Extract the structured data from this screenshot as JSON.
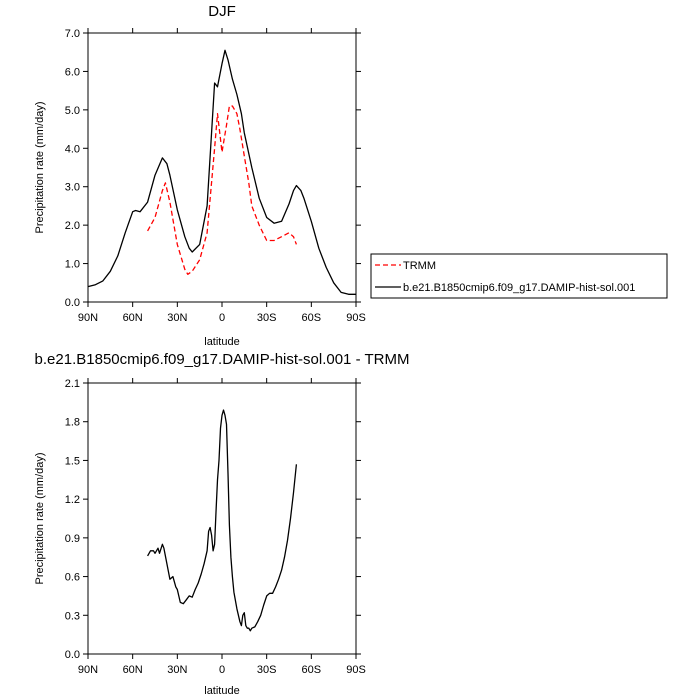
{
  "chart_data": [
    {
      "type": "line",
      "title": "DJF",
      "xlabel": "latitude",
      "ylabel": "Precipitation rate (mm/day)",
      "xlim": [
        90,
        -90
      ],
      "ylim": [
        0,
        7
      ],
      "xticks": [
        {
          "value": 90,
          "label": "90N"
        },
        {
          "value": 60,
          "label": "60N"
        },
        {
          "value": 30,
          "label": "30N"
        },
        {
          "value": 0,
          "label": "0"
        },
        {
          "value": -30,
          "label": "30S"
        },
        {
          "value": -60,
          "label": "60S"
        },
        {
          "value": -90,
          "label": "90S"
        }
      ],
      "yticks": [
        {
          "value": 0,
          "label": "0.0"
        },
        {
          "value": 1,
          "label": "1.0"
        },
        {
          "value": 2,
          "label": "2.0"
        },
        {
          "value": 3,
          "label": "3.0"
        },
        {
          "value": 4,
          "label": "4.0"
        },
        {
          "value": 5,
          "label": "5.0"
        },
        {
          "value": 6,
          "label": "6.0"
        },
        {
          "value": 7,
          "label": "7.0"
        }
      ],
      "legend_position": "right",
      "series": [
        {
          "name": "TRMM",
          "color": "#ff0000",
          "dash": true,
          "x": [
            50,
            45,
            40,
            38,
            35,
            30,
            25,
            23,
            20,
            15,
            10,
            5,
            3,
            0,
            -3,
            -5,
            -7,
            -10,
            -12,
            -15,
            -18,
            -20,
            -25,
            -30,
            -35,
            -40,
            -45,
            -48,
            -50
          ],
          "y": [
            1.85,
            2.2,
            2.9,
            3.1,
            2.6,
            1.5,
            0.85,
            0.72,
            0.8,
            1.1,
            1.8,
            4.0,
            4.9,
            3.9,
            4.6,
            5.1,
            5.1,
            4.9,
            4.5,
            3.8,
            3.1,
            2.5,
            2.0,
            1.6,
            1.6,
            1.7,
            1.8,
            1.7,
            1.5
          ]
        },
        {
          "name": "b.e21.B1850cmip6.f09_g17.DAMIP-hist-sol.001",
          "color": "#000000",
          "dash": false,
          "x": [
            90,
            85,
            80,
            75,
            70,
            65,
            60,
            58,
            55,
            50,
            45,
            40,
            37,
            35,
            30,
            25,
            22,
            20,
            15,
            10,
            5,
            3,
            0,
            -2,
            -4,
            -7,
            -10,
            -13,
            -15,
            -20,
            -25,
            -30,
            -35,
            -40,
            -45,
            -48,
            -50,
            -53,
            -55,
            -60,
            -65,
            -70,
            -75,
            -80,
            -85,
            -90
          ],
          "y": [
            0.4,
            0.45,
            0.55,
            0.8,
            1.2,
            1.8,
            2.35,
            2.38,
            2.35,
            2.6,
            3.3,
            3.75,
            3.6,
            3.3,
            2.4,
            1.7,
            1.4,
            1.3,
            1.5,
            2.5,
            5.7,
            5.6,
            6.2,
            6.55,
            6.3,
            5.8,
            5.4,
            4.9,
            4.4,
            3.5,
            2.7,
            2.2,
            2.05,
            2.1,
            2.55,
            2.9,
            3.03,
            2.9,
            2.7,
            2.1,
            1.4,
            0.9,
            0.5,
            0.25,
            0.2,
            0.2
          ]
        }
      ]
    },
    {
      "type": "line",
      "title": "b.e21.B1850cmip6.f09_g17.DAMIP-hist-sol.001 - TRMM",
      "xlabel": "latitude",
      "ylabel": "Precipitation rate (mm/day)",
      "xlim": [
        90,
        -90
      ],
      "ylim": [
        0,
        2.1
      ],
      "xticks": [
        {
          "value": 90,
          "label": "90N"
        },
        {
          "value": 60,
          "label": "60N"
        },
        {
          "value": 30,
          "label": "30N"
        },
        {
          "value": 0,
          "label": "0"
        },
        {
          "value": -30,
          "label": "30S"
        },
        {
          "value": -60,
          "label": "60S"
        },
        {
          "value": -90,
          "label": "90S"
        }
      ],
      "yticks": [
        {
          "value": 0,
          "label": "0.0"
        },
        {
          "value": 0.3,
          "label": "0.3"
        },
        {
          "value": 0.6,
          "label": "0.6"
        },
        {
          "value": 0.9,
          "label": "0.9"
        },
        {
          "value": 1.2,
          "label": "1.2"
        },
        {
          "value": 1.5,
          "label": "1.5"
        },
        {
          "value": 1.8,
          "label": "1.8"
        },
        {
          "value": 2.1,
          "label": "2.1"
        }
      ],
      "series": [
        {
          "color": "#000000",
          "dash": false,
          "x": [
            50,
            48,
            46,
            45,
            43,
            42,
            40,
            39,
            37,
            35,
            33,
            31,
            30,
            28,
            26,
            24,
            22,
            20,
            18,
            16,
            14,
            12,
            10,
            9,
            8,
            7,
            6,
            5,
            4,
            3,
            2,
            1,
            0,
            -1,
            -2,
            -3,
            -4,
            -5,
            -6,
            -7,
            -8,
            -10,
            -12,
            -13,
            -14,
            -15,
            -16,
            -17,
            -18,
            -19,
            -20,
            -22,
            -24,
            -26,
            -28,
            -30,
            -32,
            -34,
            -36,
            -38,
            -40,
            -42,
            -44,
            -46,
            -48,
            -50
          ],
          "y": [
            0.76,
            0.8,
            0.8,
            0.78,
            0.82,
            0.78,
            0.85,
            0.82,
            0.7,
            0.58,
            0.6,
            0.52,
            0.5,
            0.4,
            0.39,
            0.42,
            0.45,
            0.44,
            0.5,
            0.55,
            0.62,
            0.7,
            0.8,
            0.95,
            0.98,
            0.92,
            0.8,
            0.85,
            1.1,
            1.35,
            1.5,
            1.75,
            1.85,
            1.89,
            1.85,
            1.78,
            1.4,
            1.0,
            0.75,
            0.6,
            0.48,
            0.35,
            0.25,
            0.22,
            0.3,
            0.32,
            0.22,
            0.2,
            0.2,
            0.18,
            0.2,
            0.21,
            0.25,
            0.3,
            0.38,
            0.45,
            0.47,
            0.47,
            0.52,
            0.58,
            0.65,
            0.75,
            0.88,
            1.05,
            1.25,
            1.47
          ]
        }
      ]
    }
  ]
}
